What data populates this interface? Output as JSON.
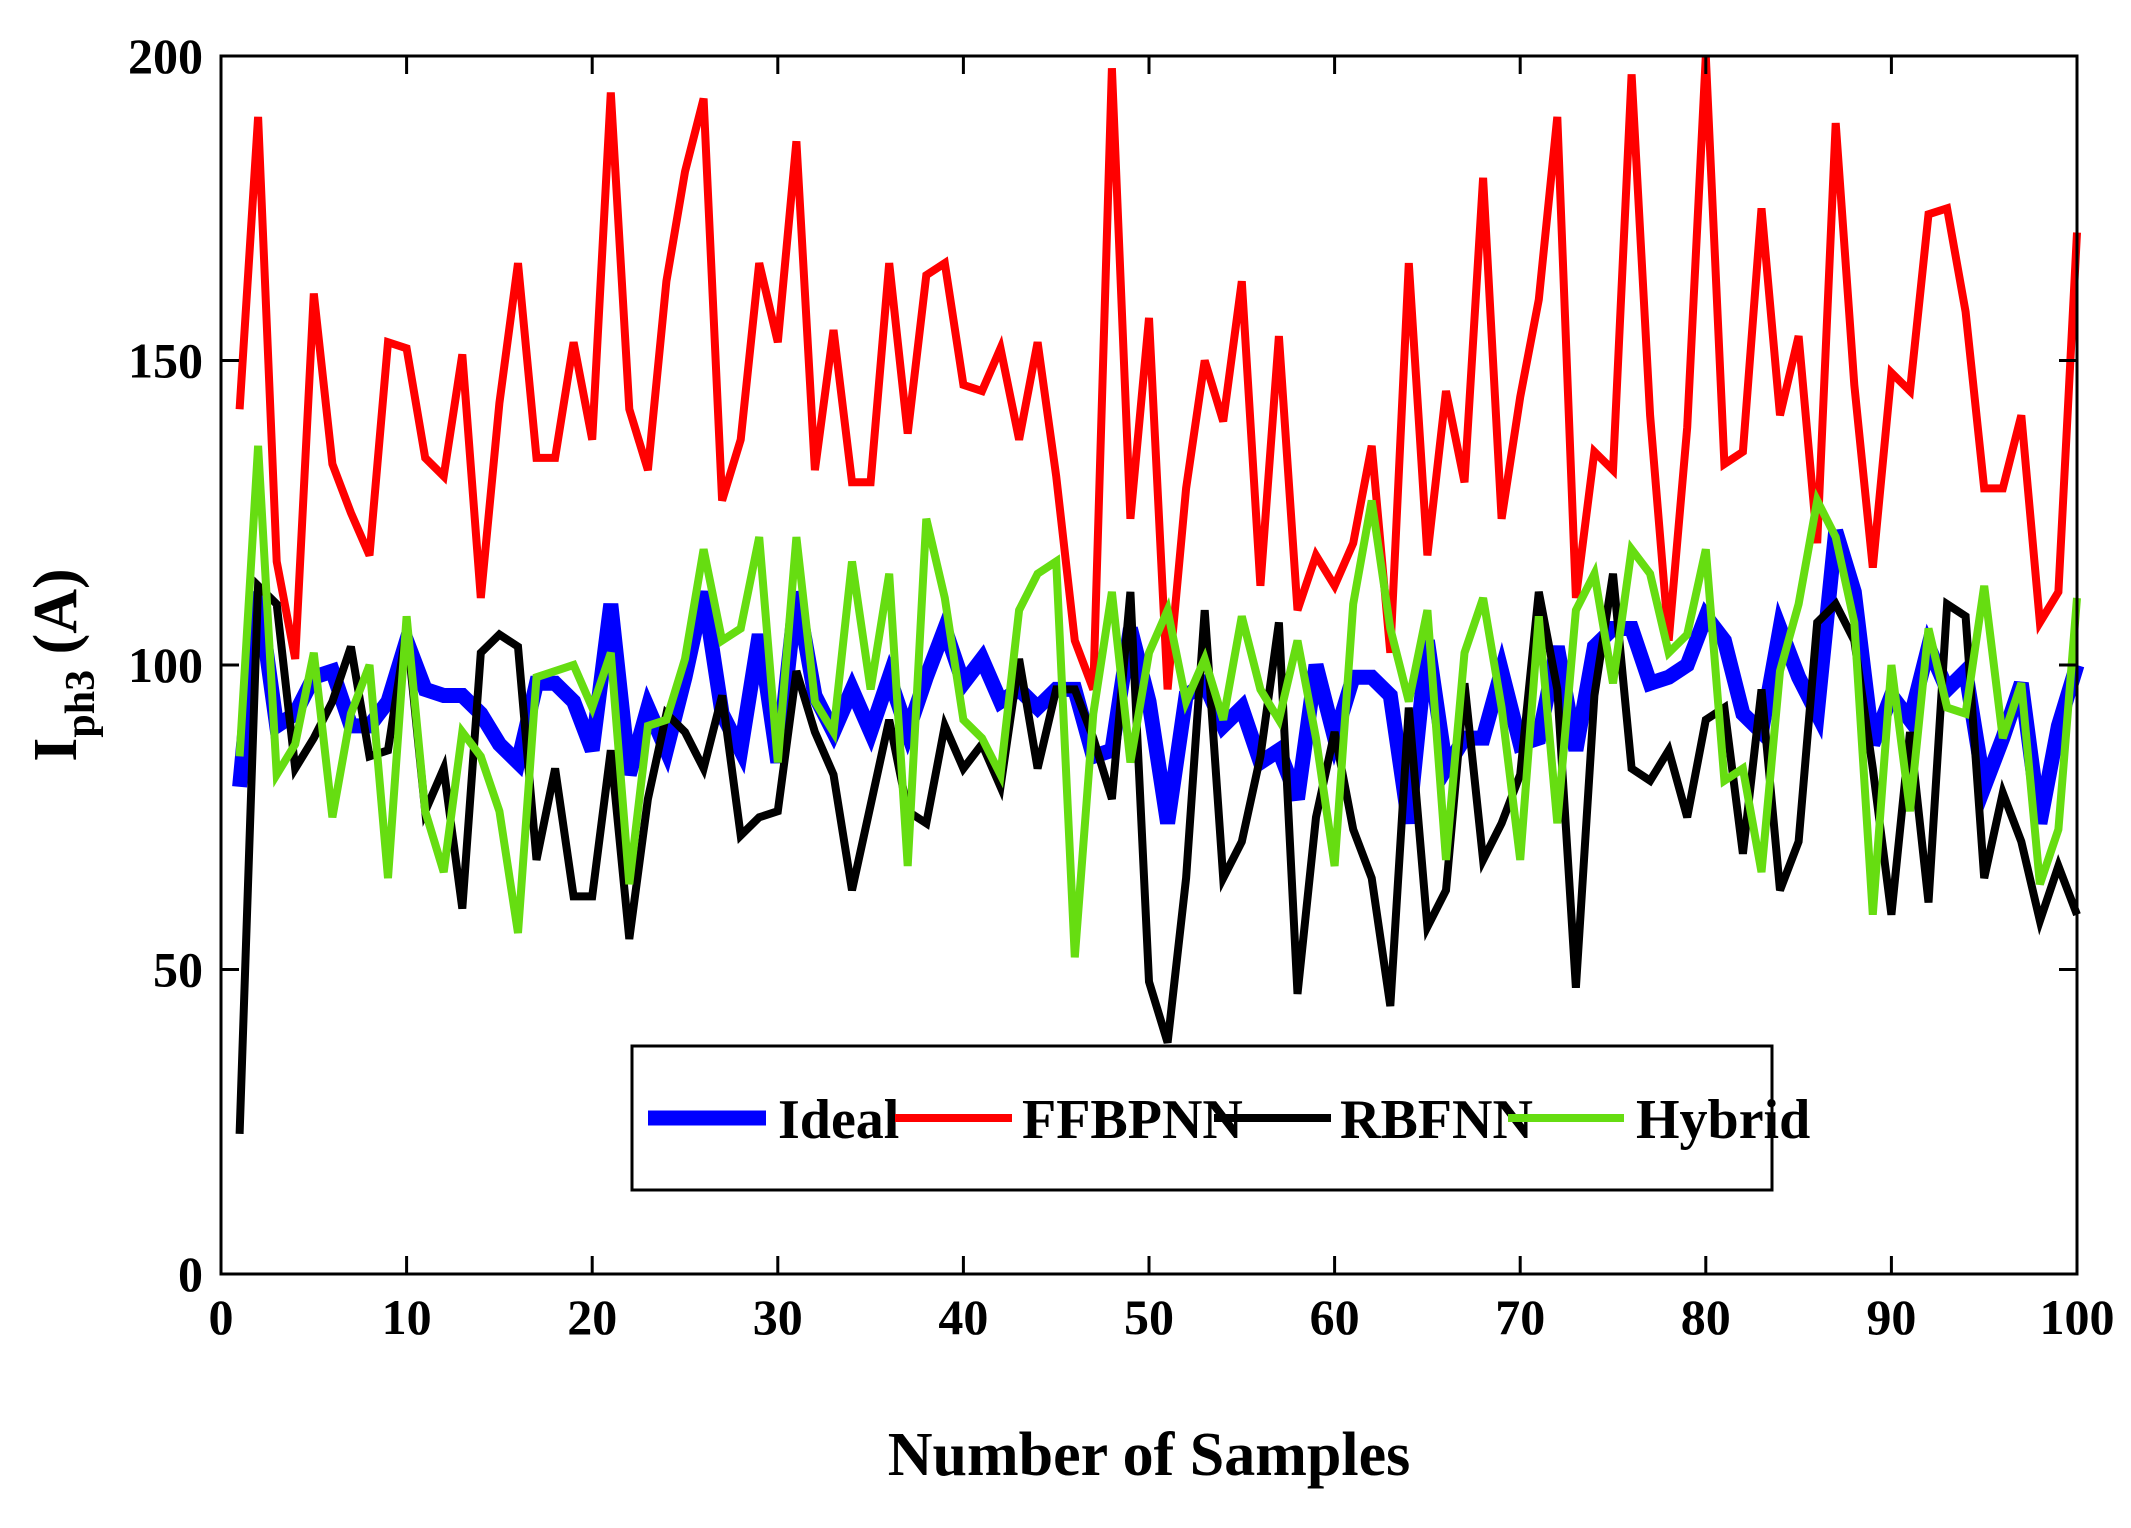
{
  "chart_data": {
    "type": "line",
    "title": "",
    "xlabel": "Number of Samples",
    "ylabel": {
      "main": "I",
      "subscript": "ph3",
      "unit": " (A)"
    },
    "xlim": [
      0,
      100
    ],
    "ylim": [
      0,
      200
    ],
    "xticks": [
      0,
      10,
      20,
      30,
      40,
      50,
      60,
      70,
      80,
      90,
      100
    ],
    "yticks": [
      0,
      50,
      100,
      150,
      200
    ],
    "grid": false,
    "legend_position": "lower-center",
    "x": [
      1,
      2,
      3,
      4,
      5,
      6,
      7,
      8,
      9,
      10,
      11,
      12,
      13,
      14,
      15,
      16,
      17,
      18,
      19,
      20,
      21,
      22,
      23,
      24,
      25,
      26,
      27,
      28,
      29,
      30,
      31,
      32,
      33,
      34,
      35,
      36,
      37,
      38,
      39,
      40,
      41,
      42,
      43,
      44,
      45,
      46,
      47,
      48,
      49,
      50,
      51,
      52,
      53,
      54,
      55,
      56,
      57,
      58,
      59,
      60,
      61,
      62,
      63,
      64,
      65,
      66,
      67,
      68,
      69,
      70,
      71,
      72,
      73,
      74,
      75,
      76,
      77,
      78,
      79,
      80,
      81,
      82,
      83,
      84,
      85,
      86,
      87,
      88,
      89,
      90,
      91,
      92,
      93,
      94,
      95,
      96,
      97,
      98,
      99,
      100
    ],
    "series": [
      {
        "name": "Ideal",
        "color": "#0000ff",
        "values": [
          80,
          112,
          90,
          92,
          98,
          99,
          90,
          90,
          94,
          104,
          96,
          95,
          95,
          92,
          87,
          84,
          97,
          97,
          94,
          86,
          110,
          82,
          93,
          86,
          98,
          112,
          92,
          86,
          105,
          84,
          112,
          95,
          89,
          96,
          89,
          98,
          89,
          98,
          106,
          97,
          101,
          94,
          96,
          93,
          96,
          96,
          85,
          86,
          106,
          94,
          74,
          95,
          97,
          90,
          93,
          84,
          86,
          78,
          100,
          88,
          98,
          98,
          95,
          74,
          104,
          83,
          88,
          88,
          99,
          87,
          88,
          103,
          86,
          103,
          106,
          106,
          97,
          98,
          100,
          108,
          104,
          92,
          89,
          106,
          98,
          92,
          122,
          112,
          87,
          95,
          91,
          103,
          96,
          99,
          80,
          88,
          97,
          74,
          90,
          100
        ]
      },
      {
        "name": "FFBPNN",
        "color": "#ff0000",
        "values": [
          142,
          190,
          117,
          101,
          161,
          133,
          125,
          118,
          153,
          152,
          134,
          131,
          151,
          111,
          143,
          166,
          134,
          134,
          153,
          137,
          194,
          142,
          132,
          163,
          181,
          193,
          127,
          137,
          166,
          153,
          186,
          132,
          155,
          130,
          130,
          166,
          138,
          164,
          166,
          146,
          145,
          152,
          137,
          153,
          131,
          104,
          96,
          198,
          124,
          157,
          96,
          129,
          150,
          140,
          163,
          113,
          154,
          109,
          118,
          113,
          120,
          136,
          102,
          166,
          118,
          145,
          130,
          180,
          124,
          144,
          160,
          190,
          111,
          135,
          132,
          197,
          141,
          104,
          139,
          200,
          133,
          135,
          175,
          141,
          154,
          120,
          189,
          146,
          116,
          148,
          145,
          174,
          175,
          158,
          129,
          129,
          141,
          107,
          112,
          171
        ]
      },
      {
        "name": "RBFNN",
        "color": "#000000",
        "values": [
          23,
          113,
          110,
          83,
          88,
          94,
          103,
          85,
          86,
          106,
          76,
          83,
          60,
          102,
          105,
          103,
          68,
          83,
          62,
          62,
          86,
          55,
          78,
          92,
          89,
          83,
          95,
          72,
          75,
          76,
          99,
          89,
          82,
          63,
          77,
          91,
          76,
          74,
          90,
          83,
          87,
          80,
          101,
          83,
          96,
          96,
          88,
          78,
          112,
          48,
          38,
          65,
          109,
          65,
          71,
          85,
          107,
          46,
          75,
          89,
          73,
          65,
          44,
          93,
          57,
          63,
          97,
          68,
          74,
          82,
          112,
          96,
          47,
          95,
          115,
          83,
          81,
          86,
          75,
          91,
          93,
          69,
          96,
          63,
          71,
          107,
          110,
          104,
          83,
          59,
          89,
          61,
          110,
          108,
          65,
          79,
          71,
          58,
          67,
          59
        ]
      },
      {
        "name": "Hybrid",
        "color": "#66dd11",
        "values": [
          85,
          136,
          82,
          87,
          102,
          75,
          92,
          100,
          65,
          108,
          76,
          66,
          89,
          85,
          76,
          56,
          98,
          99,
          100,
          93,
          102,
          64,
          90,
          91,
          101,
          119,
          104,
          106,
          121,
          84,
          121,
          94,
          89,
          117,
          96,
          115,
          67,
          124,
          111,
          91,
          88,
          82,
          109,
          115,
          117,
          52,
          92,
          112,
          84,
          102,
          109,
          94,
          101,
          91,
          108,
          96,
          91,
          104,
          88,
          67,
          110,
          127,
          106,
          94,
          109,
          68,
          102,
          111,
          93,
          68,
          108,
          74,
          109,
          115,
          97,
          119,
          115,
          102,
          105,
          119,
          81,
          83,
          66,
          99,
          110,
          127,
          121,
          107,
          59,
          100,
          76,
          106,
          93,
          92,
          113,
          88,
          97,
          64,
          73,
          111
        ]
      }
    ]
  }
}
